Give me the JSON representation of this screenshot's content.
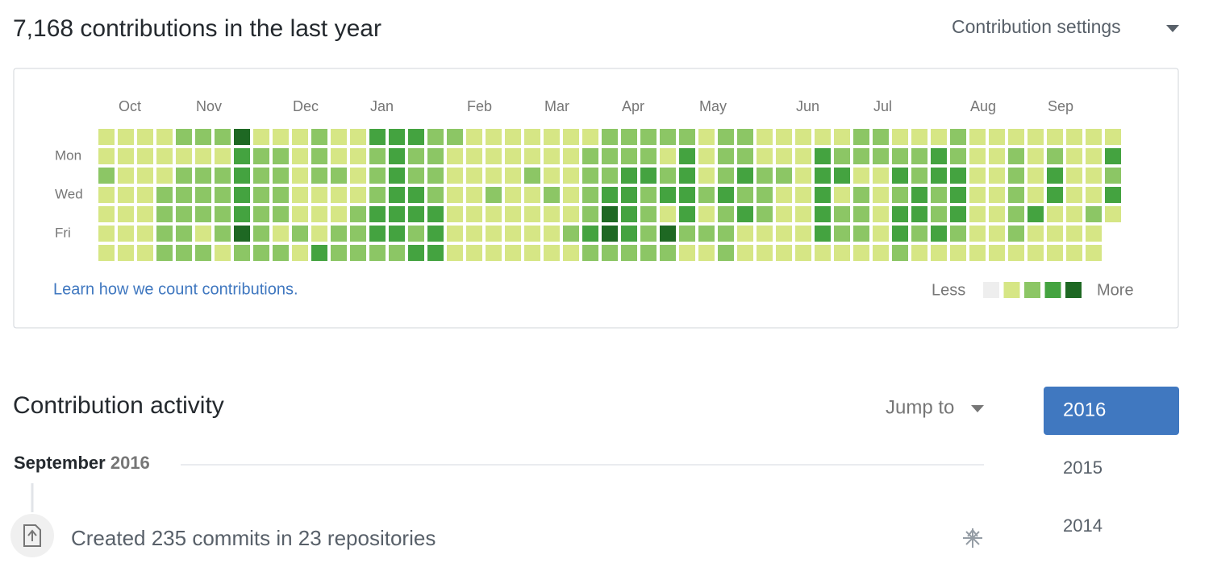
{
  "header": {
    "title": "7,168 contributions in the last year",
    "settings": "Contribution settings"
  },
  "graph": {
    "months": [
      "Oct",
      "Nov",
      "Dec",
      "Jan",
      "Feb",
      "Mar",
      "Apr",
      "May",
      "Jun",
      "Jul",
      "Aug",
      "Sep"
    ],
    "days": [
      "Mon",
      "Wed",
      "Fri"
    ],
    "colors": [
      "#eeeeee",
      "#d6e685",
      "#8cc665",
      "#44a340",
      "#1e6823"
    ],
    "levels": [
      [
        1,
        1,
        1,
        1,
        2,
        2,
        2,
        4,
        1,
        1,
        1,
        2,
        1,
        1,
        3,
        3,
        3,
        2,
        2,
        1,
        1,
        1,
        1,
        1,
        1,
        1,
        2,
        2,
        2,
        2,
        2,
        1,
        2,
        2,
        1,
        1,
        1,
        1,
        1,
        2,
        2,
        1,
        1,
        1,
        2,
        1,
        1,
        1,
        1,
        1,
        1,
        1,
        1
      ],
      [
        1,
        1,
        1,
        1,
        1,
        1,
        1,
        3,
        2,
        2,
        1,
        2,
        1,
        1,
        2,
        3,
        2,
        2,
        1,
        1,
        1,
        1,
        1,
        1,
        1,
        2,
        2,
        2,
        2,
        1,
        3,
        1,
        2,
        2,
        1,
        1,
        1,
        3,
        2,
        2,
        2,
        2,
        2,
        3,
        2,
        1,
        1,
        2,
        1,
        2,
        1,
        1,
        3
      ],
      [
        2,
        1,
        1,
        1,
        2,
        2,
        2,
        3,
        2,
        2,
        1,
        2,
        2,
        1,
        2,
        3,
        2,
        2,
        1,
        1,
        1,
        1,
        2,
        1,
        1,
        2,
        2,
        3,
        3,
        2,
        3,
        1,
        2,
        3,
        2,
        2,
        1,
        3,
        3,
        1,
        1,
        3,
        2,
        3,
        3,
        1,
        1,
        2,
        1,
        3,
        1,
        1,
        2
      ],
      [
        1,
        1,
        1,
        2,
        2,
        2,
        2,
        3,
        2,
        2,
        1,
        1,
        1,
        1,
        2,
        3,
        3,
        2,
        1,
        1,
        2,
        1,
        1,
        2,
        1,
        2,
        3,
        3,
        2,
        3,
        3,
        2,
        3,
        2,
        2,
        1,
        1,
        3,
        1,
        2,
        1,
        2,
        3,
        2,
        3,
        1,
        1,
        2,
        1,
        3,
        1,
        1,
        3
      ],
      [
        1,
        1,
        1,
        2,
        2,
        2,
        2,
        3,
        2,
        2,
        1,
        1,
        1,
        2,
        3,
        3,
        3,
        3,
        1,
        1,
        1,
        1,
        1,
        1,
        1,
        2,
        4,
        3,
        2,
        1,
        3,
        1,
        2,
        3,
        2,
        1,
        1,
        3,
        2,
        2,
        1,
        3,
        3,
        2,
        3,
        1,
        1,
        2,
        3,
        1,
        1,
        2,
        1
      ],
      [
        1,
        1,
        1,
        2,
        2,
        1,
        2,
        4,
        2,
        1,
        2,
        1,
        2,
        2,
        3,
        3,
        2,
        3,
        1,
        1,
        1,
        1,
        1,
        1,
        2,
        3,
        4,
        3,
        2,
        4,
        2,
        2,
        2,
        1,
        1,
        1,
        1,
        3,
        2,
        2,
        1,
        3,
        2,
        3,
        2,
        1,
        1,
        2,
        1,
        1,
        1,
        1
      ],
      [
        1,
        1,
        1,
        2,
        2,
        2,
        1,
        2,
        2,
        2,
        1,
        3,
        2,
        2,
        2,
        2,
        3,
        3,
        1,
        1,
        1,
        1,
        1,
        1,
        1,
        2,
        2,
        2,
        2,
        2,
        1,
        1,
        2,
        1,
        1,
        1,
        1,
        1,
        1,
        1,
        1,
        2,
        1,
        1,
        1,
        1,
        1,
        1,
        1,
        1,
        1,
        1
      ]
    ],
    "link": "Learn how we count contributions.",
    "less": "Less",
    "more": "More"
  },
  "activity": {
    "title": "Contribution activity",
    "jump": "Jump to",
    "years": [
      "2016",
      "2015",
      "2014"
    ],
    "month": "September",
    "year": "2016",
    "event": "Created 235 commits in 23 repositories"
  }
}
